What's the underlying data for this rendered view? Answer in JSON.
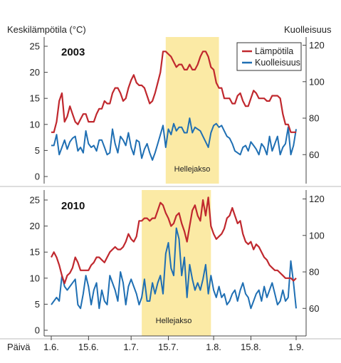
{
  "chart_data": {
    "type": "line",
    "left_axis_title": "Keskilämpötila (°C)",
    "right_axis_title": "Kuolleisuus",
    "x_axis_name": "Päivä",
    "x_ticks": [
      "1.6.",
      "15.6.",
      "1.7.",
      "15.7.",
      "1.8.",
      "15.8.",
      "1.9."
    ],
    "left_ticks": [
      0,
      5,
      10,
      15,
      20,
      25
    ],
    "right_ticks": [
      60,
      80,
      100,
      120
    ],
    "left_range": [
      0,
      27
    ],
    "right_range": [
      52,
      122
    ],
    "x_range_days": [
      0,
      92
    ],
    "colors": {
      "temperature": "#c0282e",
      "mortality": "#1f6fb3",
      "heatwave": "#fbeaa5"
    },
    "legend": {
      "position": "top-right",
      "items": [
        {
          "label": "Lämpötila",
          "color": "#c0282e"
        },
        {
          "label": "Kuolleisuus",
          "color": "#1f6fb3"
        }
      ]
    },
    "panels": [
      {
        "year": "2003",
        "heatwave_label": "Hellejakso",
        "heatwave_days": [
          43,
          63
        ],
        "temperature": [
          8.5,
          8.5,
          10.5,
          14.5,
          16,
          10.5,
          11.5,
          13.5,
          12,
          10.5,
          10,
          11,
          12,
          12,
          10.5,
          10.5,
          10.5,
          12,
          13,
          13,
          14.5,
          14,
          14,
          16,
          17,
          17,
          16,
          14.5,
          15,
          17,
          18.5,
          19.5,
          18,
          17.5,
          17.5,
          17,
          15.5,
          14,
          14.5,
          16,
          18,
          20,
          24,
          24,
          23.5,
          23,
          22,
          21,
          21.5,
          21.5,
          20.5,
          20.5,
          21.5,
          20.5,
          20.5,
          21.5,
          23,
          24,
          24,
          23,
          21,
          20.5,
          18,
          17,
          17,
          15,
          15,
          15,
          14,
          14,
          15.5,
          16,
          14.5,
          13.5,
          13.5,
          15,
          16.5,
          16,
          15,
          15,
          15,
          14.5,
          14.5,
          15.5,
          15.5,
          15.5,
          15,
          12,
          10,
          10,
          8.5,
          8.5,
          8.5
        ],
        "mortality": [
          65,
          65,
          71,
          60,
          64,
          68,
          63,
          67,
          69,
          70,
          62,
          64,
          61,
          73,
          66,
          64,
          65,
          62,
          68,
          68,
          64,
          60,
          61,
          74,
          66,
          61,
          70,
          68,
          65,
          72,
          64,
          60,
          68,
          67,
          58,
          63,
          66,
          61,
          57,
          61,
          66,
          71,
          76,
          64,
          74,
          71,
          77,
          73,
          75,
          75,
          72,
          72,
          80,
          72,
          75,
          74,
          73,
          70,
          67,
          64,
          72,
          76,
          77,
          75,
          76,
          73,
          70,
          69,
          66,
          62,
          61,
          60,
          64,
          65,
          62,
          67,
          65,
          63,
          60,
          66,
          64,
          60,
          70,
          62,
          66,
          70,
          60,
          64,
          66,
          75,
          60,
          65,
          74
        ],
        "temperature_heatwave_label": "Hellejakso"
      },
      {
        "year": "2010",
        "heatwave_label": "Hellejakso",
        "heatwave_days": [
          34,
          60
        ],
        "temperature": [
          14,
          15,
          14,
          12.5,
          10.5,
          9,
          10.5,
          11,
          12,
          14,
          13,
          11.5,
          11.5,
          11.5,
          11.5,
          12.5,
          13,
          14,
          14,
          13.5,
          13,
          14,
          15,
          15.5,
          16,
          15.5,
          15.5,
          16,
          17,
          18.5,
          17.5,
          17,
          18,
          21,
          21,
          21.5,
          21.5,
          21,
          21.5,
          21.5,
          23,
          24.5,
          24,
          22.5,
          21.5,
          20,
          20.5,
          22,
          22.5,
          20.5,
          19,
          17,
          20,
          23,
          24,
          22,
          21,
          25,
          22,
          25.5,
          20,
          18.5,
          17.5,
          18,
          18.5,
          19.5,
          21.5,
          22,
          23.5,
          22,
          20.5,
          21,
          18.5,
          17,
          16.5,
          17,
          15.5,
          16.5,
          16,
          15,
          14,
          13.5,
          12.5,
          12,
          11.5,
          11.5,
          11,
          10.5,
          10,
          10,
          10,
          9.5,
          10
        ],
        "mortality": [
          62,
          64,
          66,
          64,
          78,
          72,
          70,
          72,
          74,
          76,
          62,
          60,
          68,
          78,
          72,
          62,
          70,
          74,
          60,
          70,
          64,
          62,
          78,
          74,
          70,
          64,
          80,
          74,
          62,
          72,
          76,
          72,
          68,
          62,
          66,
          76,
          64,
          64,
          74,
          68,
          74,
          78,
          68,
          90,
          96,
          82,
          78,
          104,
          98,
          78,
          88,
          66,
          84,
          76,
          70,
          74,
          70,
          76,
          84,
          68,
          78,
          70,
          66,
          72,
          66,
          68,
          62,
          64,
          68,
          70,
          64,
          70,
          74,
          68,
          66,
          60,
          64,
          68,
          70,
          64,
          72,
          66,
          70,
          74,
          68,
          62,
          64,
          70,
          64,
          66,
          86,
          74,
          60
        ]
      }
    ]
  }
}
